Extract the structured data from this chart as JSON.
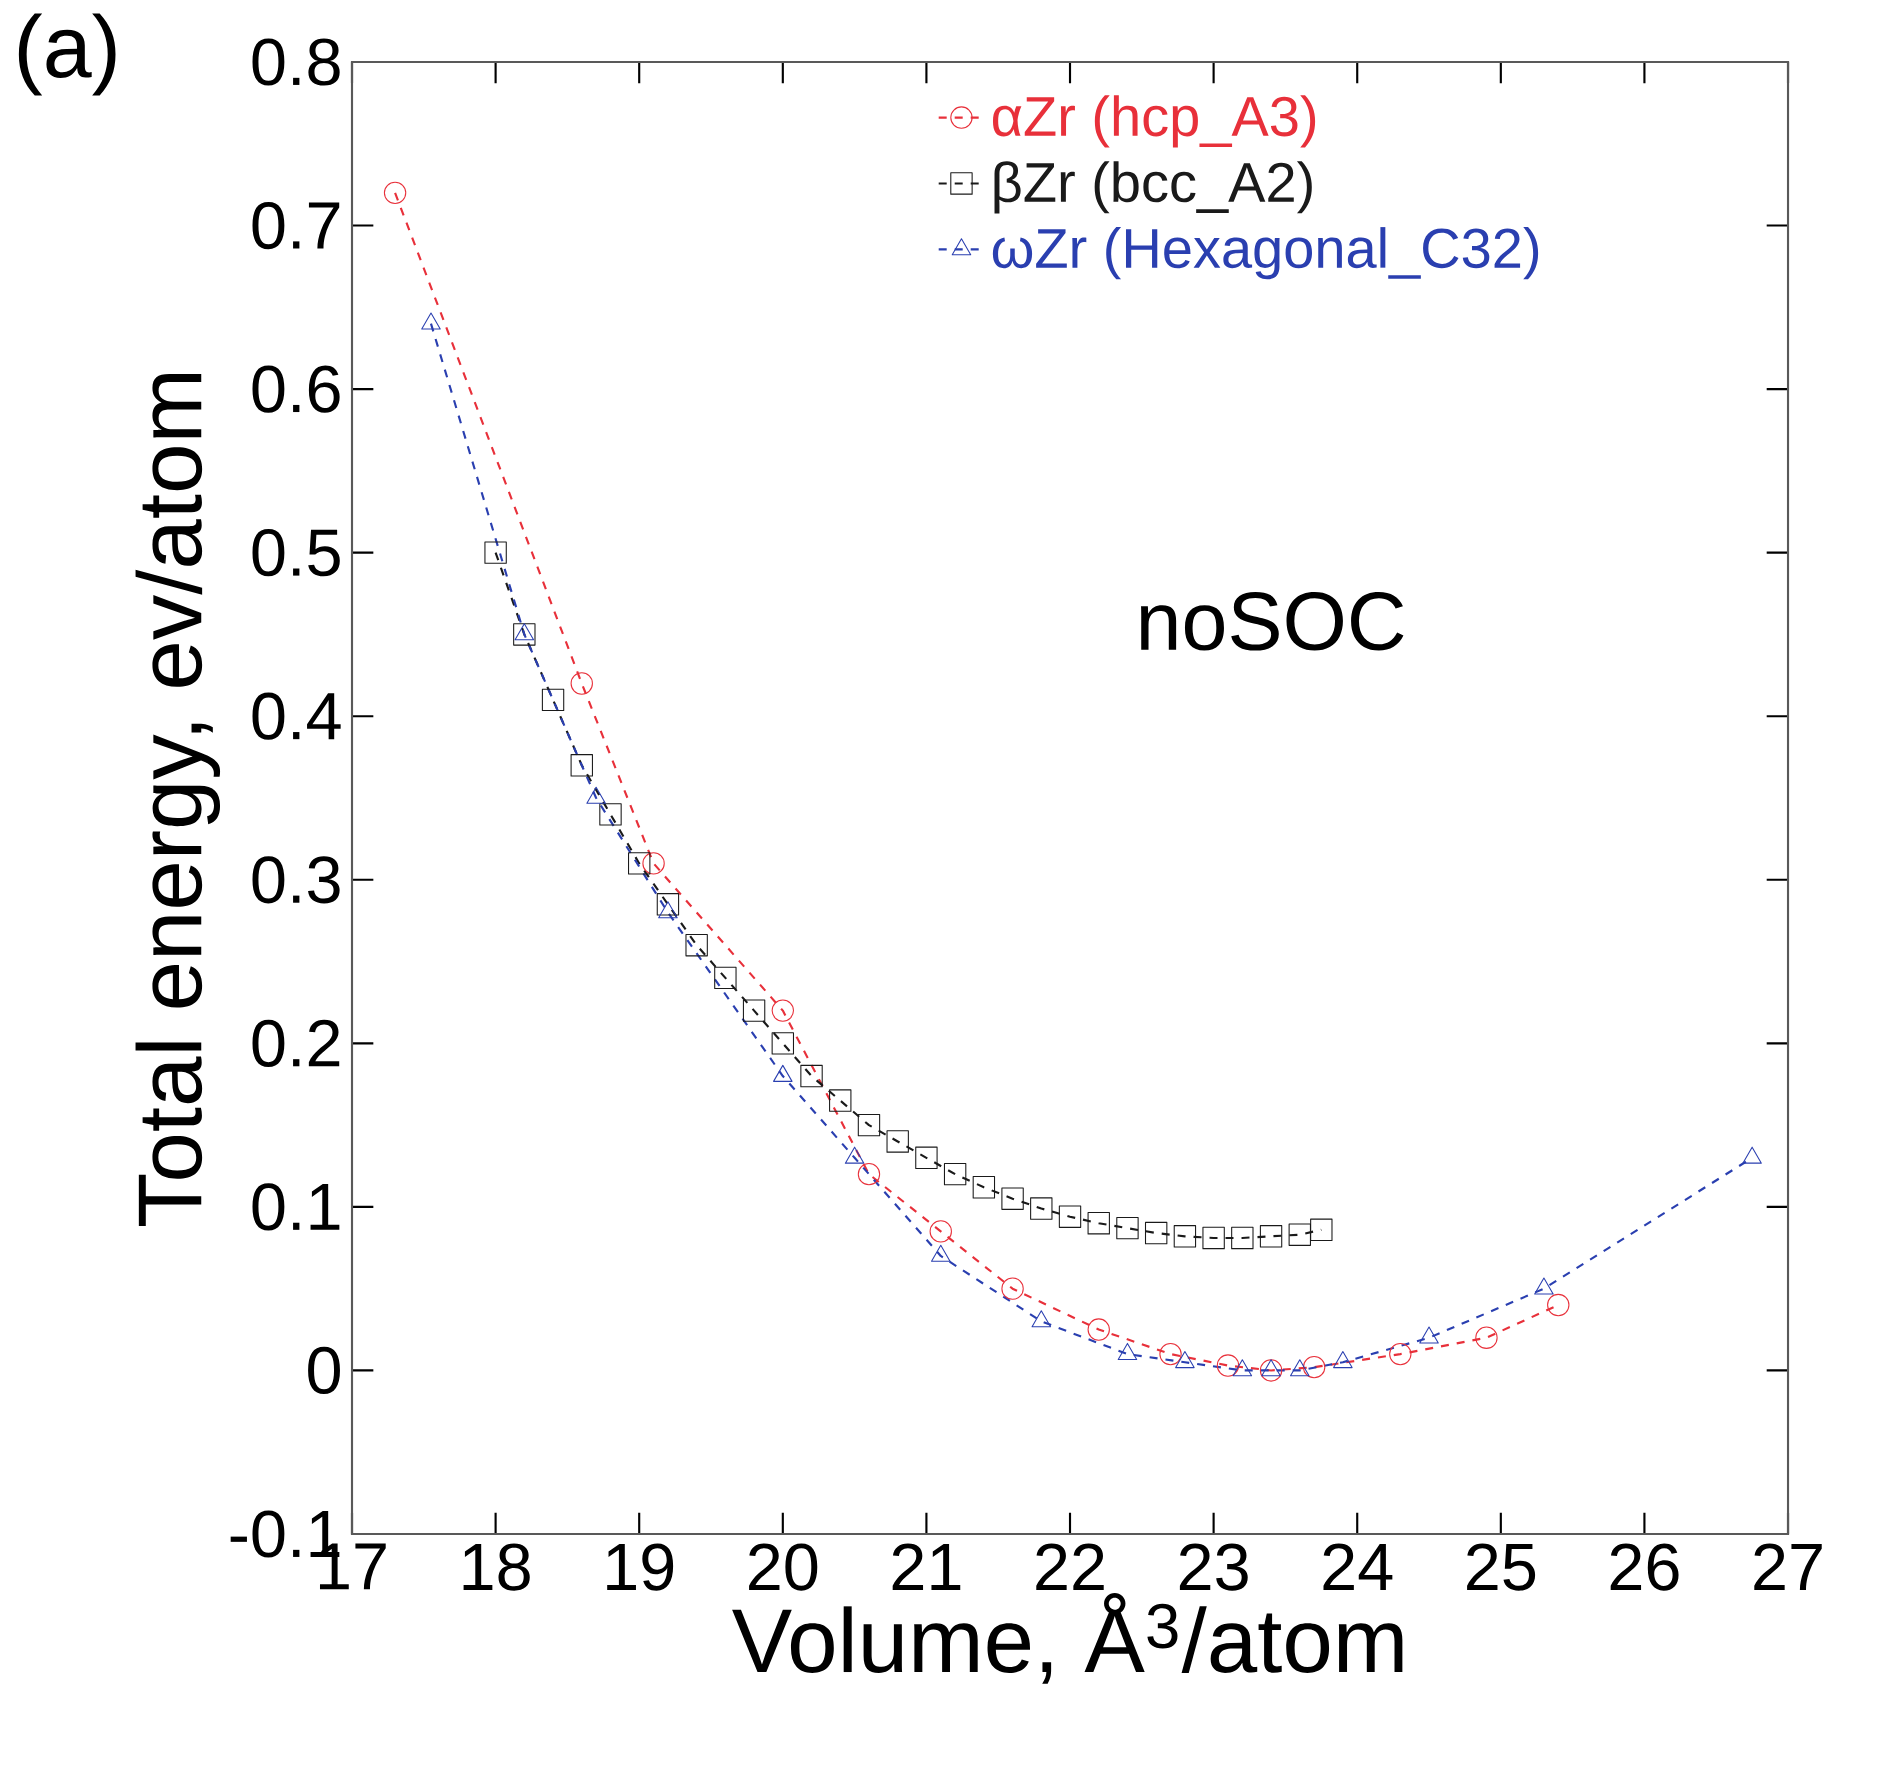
{
  "chart_data": {
    "type": "line",
    "xlabel": "Volume, Å$^{3}$/atom",
    "ylabel": "Total energy, ev/atom",
    "xlim": [
      17,
      27
    ],
    "ylim": [
      -0.1,
      0.8
    ],
    "xticks": [
      17,
      18,
      19,
      20,
      21,
      22,
      23,
      24,
      25,
      26,
      27
    ],
    "yticks": [
      {
        "value": -0.1,
        "label": "-0.1"
      },
      0,
      {
        "value": 0.1,
        "label": "0.1"
      },
      {
        "value": 0.2,
        "label": "0.2"
      },
      {
        "value": 0.3,
        "label": "0.3"
      },
      {
        "value": 0.4,
        "label": "0.4"
      },
      {
        "value": 0.5,
        "label": "0.5"
      },
      {
        "value": 0.6,
        "label": "0.6"
      },
      {
        "value": 0.7,
        "label": "0.7"
      },
      {
        "value": 0.8,
        "label": "0.8"
      }
    ],
    "grid": false,
    "legend": "top",
    "line_style": "dashed",
    "annotations": [
      "(a)",
      "noSOC"
    ],
    "series": [
      {
        "name": "αZr (hcp_A3)",
        "color": "#e8303a",
        "marker": "circle",
        "x": [
          17.3,
          18.6,
          19.1,
          20.0,
          20.6,
          21.1,
          21.6,
          22.2,
          22.7,
          23.1,
          23.4,
          23.7,
          24.3,
          24.9,
          25.4
        ],
        "values": [
          0.72,
          0.42,
          0.31,
          0.22,
          0.12,
          0.085,
          0.05,
          0.025,
          0.01,
          0.003,
          0.0,
          0.002,
          0.01,
          0.02,
          0.04
        ]
      },
      {
        "name": "βZr (bcc_A2)",
        "color": "#1a1a1a",
        "marker": "square",
        "x": [
          18.0,
          18.2,
          18.4,
          18.6,
          18.8,
          19.0,
          19.2,
          19.4,
          19.6,
          19.8,
          20.0,
          20.2,
          20.4,
          20.6,
          20.8,
          21.0,
          21.2,
          21.4,
          21.6,
          21.8,
          22.0,
          22.2,
          22.4,
          22.6,
          22.8,
          23.0,
          23.2,
          23.4,
          23.6,
          23.75
        ],
        "values": [
          0.5,
          0.45,
          0.41,
          0.37,
          0.34,
          0.31,
          0.285,
          0.26,
          0.24,
          0.22,
          0.2,
          0.18,
          0.165,
          0.15,
          0.14,
          0.13,
          0.12,
          0.112,
          0.105,
          0.099,
          0.094,
          0.09,
          0.087,
          0.084,
          0.082,
          0.081,
          0.081,
          0.082,
          0.083,
          0.086
        ]
      },
      {
        "name": "ωZr (Hexagonal_C32)",
        "color": "#2a3fb0",
        "marker": "triangle",
        "x": [
          17.55,
          18.2,
          18.7,
          19.2,
          20.0,
          20.5,
          21.1,
          21.8,
          22.4,
          22.8,
          23.2,
          23.4,
          23.6,
          23.9,
          24.5,
          25.3,
          26.75
        ],
        "values": [
          0.64,
          0.45,
          0.35,
          0.28,
          0.18,
          0.13,
          0.07,
          0.03,
          0.01,
          0.005,
          0.0,
          0.0,
          0.0,
          0.005,
          0.02,
          0.05,
          0.13
        ]
      }
    ]
  }
}
